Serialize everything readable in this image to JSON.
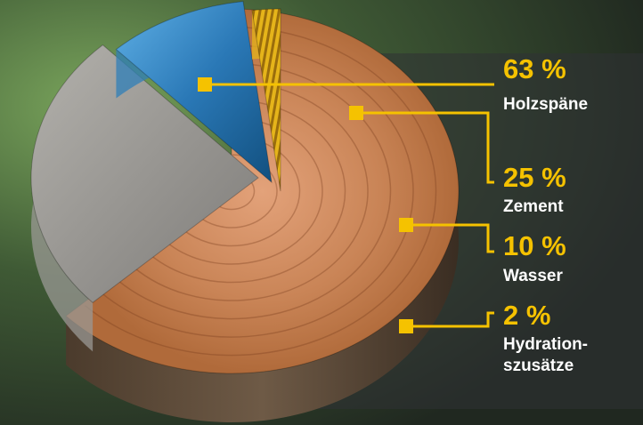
{
  "chart_data": {
    "type": "pie",
    "slices": [
      {
        "label_lines": [
          "Holzspäne"
        ],
        "percent_text": "63 %",
        "value": 63,
        "color": "#c77a4a"
      },
      {
        "label_lines": [
          "Zement"
        ],
        "percent_text": "25 %",
        "value": 25,
        "color": "#9a9894"
      },
      {
        "label_lines": [
          "Wasser"
        ],
        "percent_text": "10 %",
        "value": 10,
        "color": "#2f7fb8"
      },
      {
        "label_lines": [
          "Hydration-",
          "szusätze"
        ],
        "percent_text": "2 %",
        "value": 2,
        "color": "#e5b41a"
      }
    ]
  },
  "accent_color": "#f5c200"
}
